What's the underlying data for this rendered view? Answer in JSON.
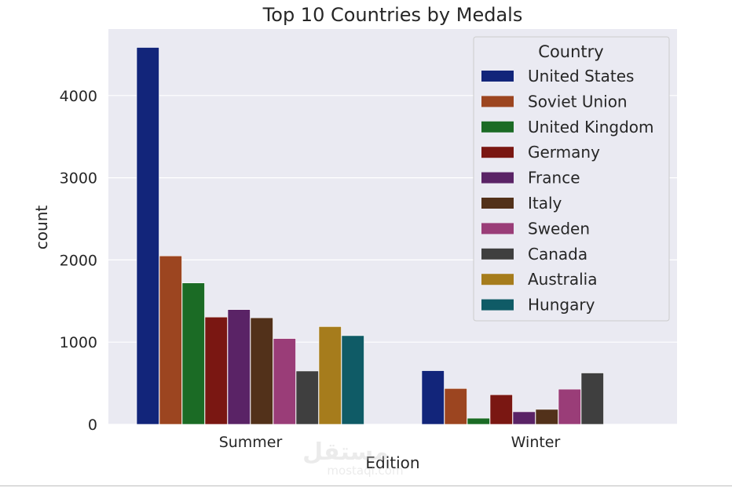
{
  "chart_data": {
    "type": "bar",
    "title": "Top 10 Countries by Medals",
    "xlabel": "Edition",
    "ylabel": "count",
    "categories": [
      "Summer",
      "Winter"
    ],
    "ylim": [
      0,
      4800
    ],
    "yticks": [
      0,
      1000,
      2000,
      3000,
      4000
    ],
    "grid": true,
    "legend_title": "Country",
    "legend_position": "top-right",
    "series": [
      {
        "name": "United States",
        "color": "#12257a",
        "values": [
          4585,
          653
        ]
      },
      {
        "name": "Soviet Union",
        "color": "#9c4520",
        "values": [
          2049,
          436
        ]
      },
      {
        "name": "United Kingdom",
        "color": "#1b6b25",
        "values": [
          1720,
          75
        ]
      },
      {
        "name": "Germany",
        "color": "#7a1712",
        "values": [
          1305,
          360
        ]
      },
      {
        "name": "France",
        "color": "#5a2366",
        "values": [
          1396,
          153
        ]
      },
      {
        "name": "Italy",
        "color": "#52311a",
        "values": [
          1296,
          182
        ]
      },
      {
        "name": "Sweden",
        "color": "#9a3d78",
        "values": [
          1044,
          428
        ]
      },
      {
        "name": "Canada",
        "color": "#3f3f3f",
        "values": [
          649,
          625
        ]
      },
      {
        "name": "Australia",
        "color": "#a67c1c",
        "values": [
          1189,
          0
        ]
      },
      {
        "name": "Hungary",
        "color": "#0f5b66",
        "values": [
          1079,
          0
        ]
      }
    ]
  },
  "watermark": {
    "arabic": "مستقل",
    "latin": "mostaql.com"
  }
}
